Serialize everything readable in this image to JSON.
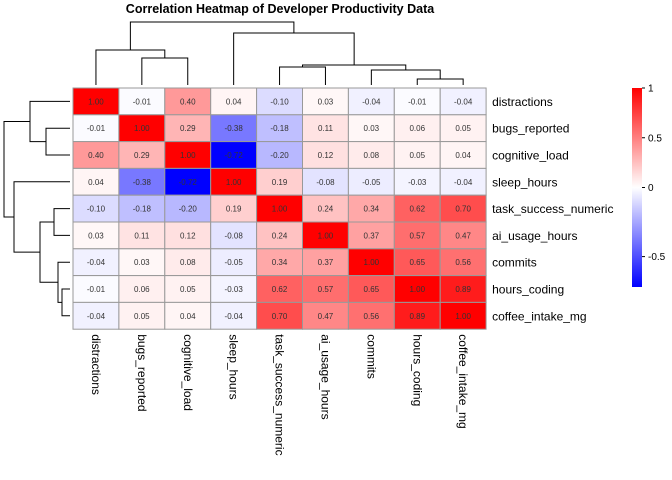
{
  "chart_data": {
    "type": "heatmap",
    "title": "Correlation Heatmap of Developer Productivity Data",
    "rows": [
      "distractions",
      "bugs_reported",
      "cognitive_load",
      "sleep_hours",
      "task_success_numeric",
      "ai_usage_hours",
      "commits",
      "hours_coding",
      "coffee_intake_mg"
    ],
    "columns": [
      "distractions",
      "bugs_reported",
      "cognitive_load",
      "sleep_hours",
      "task_success_numeric",
      "ai_usage_hours",
      "commits",
      "hours_coding",
      "coffee_intake_mg"
    ],
    "values": [
      [
        1.0,
        -0.01,
        0.4,
        0.04,
        -0.1,
        0.03,
        -0.04,
        -0.01,
        -0.04
      ],
      [
        -0.01,
        1.0,
        0.29,
        -0.38,
        -0.18,
        0.11,
        0.03,
        0.06,
        0.05
      ],
      [
        0.4,
        0.29,
        1.0,
        -0.72,
        -0.2,
        0.12,
        0.08,
        0.05,
        0.04
      ],
      [
        0.04,
        -0.38,
        -0.72,
        1.0,
        0.19,
        -0.08,
        -0.05,
        -0.03,
        -0.04
      ],
      [
        -0.1,
        -0.18,
        -0.2,
        0.19,
        1.0,
        0.24,
        0.34,
        0.62,
        0.7
      ],
      [
        0.03,
        0.11,
        0.12,
        -0.08,
        0.24,
        1.0,
        0.37,
        0.57,
        0.47
      ],
      [
        -0.04,
        0.03,
        0.08,
        -0.05,
        0.34,
        0.37,
        1.0,
        0.65,
        0.56
      ],
      [
        -0.01,
        0.06,
        0.05,
        -0.03,
        0.62,
        0.57,
        0.65,
        1.0,
        0.89
      ],
      [
        -0.04,
        0.05,
        0.04,
        -0.04,
        0.7,
        0.47,
        0.56,
        0.89,
        1.0
      ]
    ],
    "color_scale": {
      "low": "#0000FF",
      "mid": "#FFFFFF",
      "high": "#FF0000",
      "range": [
        -0.72,
        1.0
      ]
    },
    "legend": {
      "position": "right",
      "ticks": [
        1,
        0.5,
        0,
        -0.5
      ]
    },
    "cell_border_color": "#999999",
    "dendrograms": {
      "rows": true,
      "columns": true
    }
  }
}
